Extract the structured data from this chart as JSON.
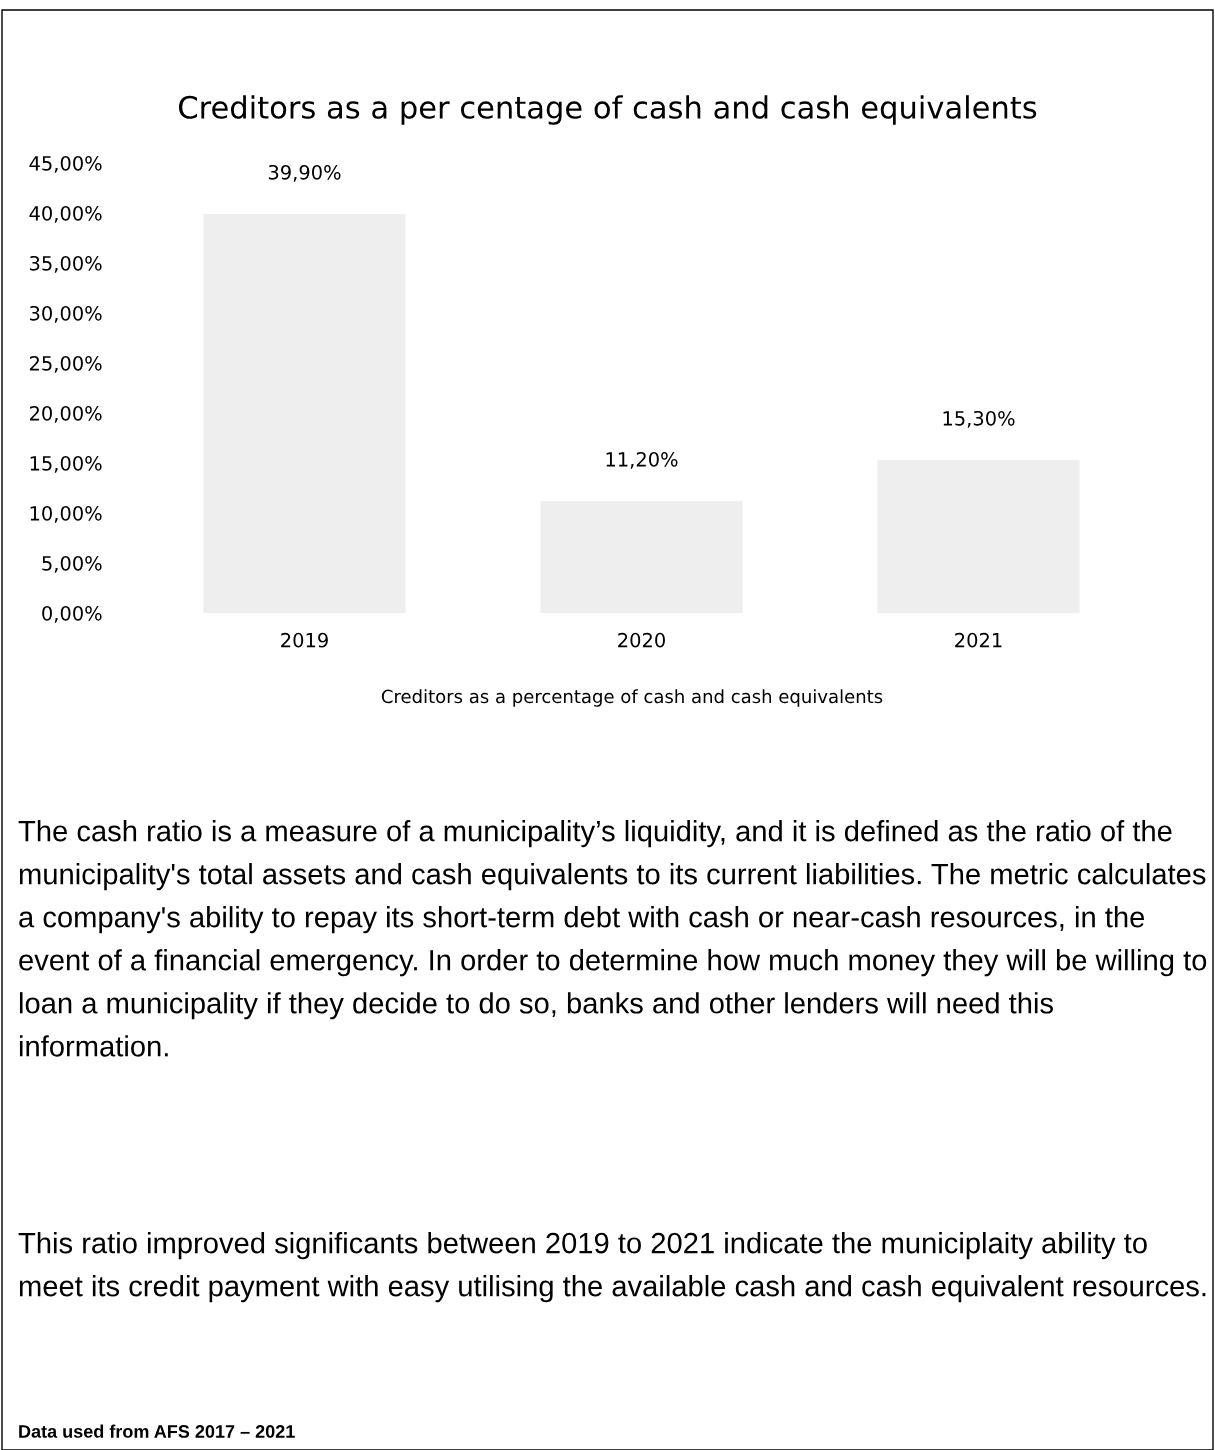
{
  "chart_data": {
    "type": "bar",
    "title": "Creditors as a per centage of cash and cash equivalents",
    "xlabel": "Creditors as a percentage of cash and cash equivalents",
    "categories": [
      "2019",
      "2020",
      "2021"
    ],
    "values": [
      39.9,
      11.2,
      15.3
    ],
    "value_labels": [
      "39,90%",
      "11,20%",
      "15,30%"
    ],
    "color": "#eeeeee",
    "ylim": [
      0,
      45
    ],
    "yticks": [
      {
        "value": 0,
        "label": "0,00%"
      },
      {
        "value": 5,
        "label": "5,00%"
      },
      {
        "value": 10,
        "label": "10,00%"
      },
      {
        "value": 15,
        "label": "15,00%"
      },
      {
        "value": 20,
        "label": "20,00%"
      },
      {
        "value": 25,
        "label": "25,00%"
      },
      {
        "value": 30,
        "label": "30,00%"
      },
      {
        "value": 35,
        "label": "35,00%"
      },
      {
        "value": 40,
        "label": "40,00%"
      },
      {
        "value": 45,
        "label": "45,00%"
      }
    ],
    "grid": false,
    "legend": false,
    "annotations": [
      "The cash ratio is a measure of a municipality’s liquidity, and it is defined as the ratio of the municipality's total assets and cash equivalents to its current liabilities. The metric calculates a company's ability to repay its short-term debt with cash or near-cash resources, in the event of a financial emergency. In order to determine how much money they will be willing to loan a municipality if they decide to do so, banks and other lenders will need this information.",
      "This ratio improved significants between 2019 to 2021 indicate the municiplaity ability to meet its credit payment with easy utilising the available cash and cash equivalent resources.",
      "Data used from AFS 2017 – 2021"
    ]
  }
}
